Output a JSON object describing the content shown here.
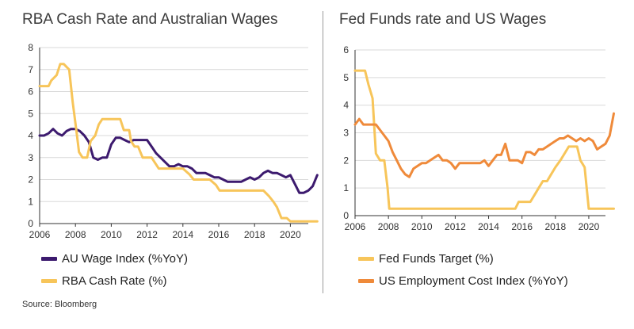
{
  "source": "Source: Bloomberg",
  "chart_data": [
    {
      "type": "line",
      "title": "RBA Cash Rate and Australian Wages",
      "xlim": [
        2006,
        2021
      ],
      "ylim": [
        0,
        8
      ],
      "xticks": [
        "2006",
        "2008",
        "2010",
        "2012",
        "2014",
        "2016",
        "2018",
        "2020"
      ],
      "yticks": [
        "0",
        "1",
        "2",
        "3",
        "4",
        "5",
        "6",
        "7",
        "8"
      ],
      "grid": "horizontal",
      "legend": "bottom",
      "series": [
        {
          "name": "AU Wage Index (%YoY)",
          "color": "#3c1a6e",
          "points": [
            [
              2006.0,
              4.0
            ],
            [
              2006.25,
              4.0
            ],
            [
              2006.5,
              4.1
            ],
            [
              2006.75,
              4.3
            ],
            [
              2007.0,
              4.1
            ],
            [
              2007.25,
              4.0
            ],
            [
              2007.5,
              4.2
            ],
            [
              2007.75,
              4.3
            ],
            [
              2008.0,
              4.3
            ],
            [
              2008.25,
              4.2
            ],
            [
              2008.5,
              4.0
            ],
            [
              2008.75,
              3.7
            ],
            [
              2009.0,
              3.0
            ],
            [
              2009.25,
              2.9
            ],
            [
              2009.5,
              3.0
            ],
            [
              2009.75,
              3.0
            ],
            [
              2010.0,
              3.6
            ],
            [
              2010.25,
              3.9
            ],
            [
              2010.5,
              3.9
            ],
            [
              2010.75,
              3.8
            ],
            [
              2011.0,
              3.7
            ],
            [
              2011.25,
              3.8
            ],
            [
              2011.5,
              3.8
            ],
            [
              2011.75,
              3.8
            ],
            [
              2012.0,
              3.8
            ],
            [
              2012.25,
              3.5
            ],
            [
              2012.5,
              3.2
            ],
            [
              2012.75,
              3.0
            ],
            [
              2013.0,
              2.8
            ],
            [
              2013.25,
              2.6
            ],
            [
              2013.5,
              2.6
            ],
            [
              2013.75,
              2.7
            ],
            [
              2014.0,
              2.6
            ],
            [
              2014.25,
              2.6
            ],
            [
              2014.5,
              2.5
            ],
            [
              2014.75,
              2.3
            ],
            [
              2015.0,
              2.3
            ],
            [
              2015.25,
              2.3
            ],
            [
              2015.5,
              2.2
            ],
            [
              2015.75,
              2.1
            ],
            [
              2016.0,
              2.1
            ],
            [
              2016.25,
              2.0
            ],
            [
              2016.5,
              1.9
            ],
            [
              2016.75,
              1.9
            ],
            [
              2017.0,
              1.9
            ],
            [
              2017.25,
              1.9
            ],
            [
              2017.5,
              2.0
            ],
            [
              2017.75,
              2.1
            ],
            [
              2018.0,
              2.0
            ],
            [
              2018.25,
              2.1
            ],
            [
              2018.5,
              2.3
            ],
            [
              2018.75,
              2.4
            ],
            [
              2019.0,
              2.3
            ],
            [
              2019.25,
              2.3
            ],
            [
              2019.5,
              2.2
            ],
            [
              2019.75,
              2.1
            ],
            [
              2020.0,
              2.2
            ],
            [
              2020.25,
              1.8
            ],
            [
              2020.5,
              1.4
            ],
            [
              2020.75,
              1.4
            ],
            [
              2021.0,
              1.5
            ],
            [
              2021.25,
              1.7
            ],
            [
              2021.5,
              2.2
            ]
          ]
        },
        {
          "name": "RBA Cash Rate (%)",
          "color": "#f7c55a",
          "points": [
            [
              2006.0,
              6.25
            ],
            [
              2006.35,
              6.25
            ],
            [
              2006.5,
              6.25
            ],
            [
              2006.65,
              6.5
            ],
            [
              2006.95,
              6.75
            ],
            [
              2007.15,
              7.25
            ],
            [
              2007.35,
              7.25
            ],
            [
              2007.65,
              7.0
            ],
            [
              2007.85,
              5.5
            ],
            [
              2008.05,
              4.25
            ],
            [
              2008.2,
              3.25
            ],
            [
              2008.4,
              3.0
            ],
            [
              2008.65,
              3.0
            ],
            [
              2008.85,
              3.75
            ],
            [
              2009.1,
              4.0
            ],
            [
              2009.3,
              4.5
            ],
            [
              2009.5,
              4.75
            ],
            [
              2010.5,
              4.75
            ],
            [
              2010.7,
              4.25
            ],
            [
              2011.0,
              4.25
            ],
            [
              2011.1,
              3.75
            ],
            [
              2011.3,
              3.5
            ],
            [
              2011.5,
              3.5
            ],
            [
              2011.75,
              3.0
            ],
            [
              2012.25,
              3.0
            ],
            [
              2012.45,
              2.75
            ],
            [
              2012.65,
              2.5
            ],
            [
              2014.0,
              2.5
            ],
            [
              2014.35,
              2.25
            ],
            [
              2014.6,
              2.0
            ],
            [
              2015.5,
              2.0
            ],
            [
              2015.85,
              1.75
            ],
            [
              2016.05,
              1.5
            ],
            [
              2018.5,
              1.5
            ],
            [
              2018.8,
              1.25
            ],
            [
              2019.05,
              1.0
            ],
            [
              2019.25,
              0.75
            ],
            [
              2019.5,
              0.25
            ],
            [
              2019.8,
              0.25
            ],
            [
              2020.0,
              0.1
            ],
            [
              2021.5,
              0.1
            ]
          ]
        }
      ]
    },
    {
      "type": "line",
      "title": "Fed Funds rate and US Wages",
      "xlim": [
        2006,
        2021
      ],
      "ylim": [
        0,
        6
      ],
      "xticks": [
        "2006",
        "2008",
        "2010",
        "2012",
        "2014",
        "2016",
        "2018",
        "2020"
      ],
      "yticks": [
        "0",
        "1",
        "2",
        "3",
        "4",
        "5",
        "6"
      ],
      "grid": "horizontal",
      "legend": "bottom",
      "series": [
        {
          "name": "Fed Funds Target (%)",
          "color": "#f7c55a",
          "points": [
            [
              2006.0,
              5.25
            ],
            [
              2006.6,
              5.25
            ],
            [
              2006.8,
              4.75
            ],
            [
              2007.05,
              4.25
            ],
            [
              2007.25,
              2.25
            ],
            [
              2007.5,
              2.0
            ],
            [
              2007.75,
              2.0
            ],
            [
              2007.95,
              1.0
            ],
            [
              2008.05,
              0.25
            ],
            [
              2015.6,
              0.25
            ],
            [
              2015.8,
              0.5
            ],
            [
              2016.5,
              0.5
            ],
            [
              2016.75,
              0.75
            ],
            [
              2017.0,
              1.0
            ],
            [
              2017.25,
              1.25
            ],
            [
              2017.5,
              1.25
            ],
            [
              2017.75,
              1.5
            ],
            [
              2018.0,
              1.75
            ],
            [
              2018.3,
              2.0
            ],
            [
              2018.55,
              2.25
            ],
            [
              2018.8,
              2.5
            ],
            [
              2019.3,
              2.5
            ],
            [
              2019.5,
              2.0
            ],
            [
              2019.75,
              1.75
            ],
            [
              2020.0,
              0.25
            ],
            [
              2021.5,
              0.25
            ]
          ]
        },
        {
          "name": "US Employment Cost Index (%YoY)",
          "color": "#ef8a3a",
          "points": [
            [
              2006.0,
              3.3
            ],
            [
              2006.25,
              3.5
            ],
            [
              2006.5,
              3.3
            ],
            [
              2006.75,
              3.3
            ],
            [
              2007.0,
              3.3
            ],
            [
              2007.25,
              3.3
            ],
            [
              2007.5,
              3.1
            ],
            [
              2007.75,
              2.9
            ],
            [
              2008.0,
              2.7
            ],
            [
              2008.25,
              2.3
            ],
            [
              2008.5,
              2.0
            ],
            [
              2008.75,
              1.7
            ],
            [
              2009.0,
              1.5
            ],
            [
              2009.25,
              1.4
            ],
            [
              2009.5,
              1.7
            ],
            [
              2009.75,
              1.8
            ],
            [
              2010.0,
              1.9
            ],
            [
              2010.25,
              1.9
            ],
            [
              2010.5,
              2.0
            ],
            [
              2010.75,
              2.1
            ],
            [
              2011.0,
              2.2
            ],
            [
              2011.25,
              2.0
            ],
            [
              2011.5,
              2.0
            ],
            [
              2011.75,
              1.9
            ],
            [
              2012.0,
              1.7
            ],
            [
              2012.25,
              1.9
            ],
            [
              2012.5,
              1.9
            ],
            [
              2012.75,
              1.9
            ],
            [
              2013.0,
              1.9
            ],
            [
              2013.25,
              1.9
            ],
            [
              2013.5,
              1.9
            ],
            [
              2013.75,
              2.0
            ],
            [
              2014.0,
              1.8
            ],
            [
              2014.25,
              2.0
            ],
            [
              2014.5,
              2.2
            ],
            [
              2014.75,
              2.2
            ],
            [
              2015.0,
              2.6
            ],
            [
              2015.25,
              2.0
            ],
            [
              2015.5,
              2.0
            ],
            [
              2015.75,
              2.0
            ],
            [
              2016.0,
              1.9
            ],
            [
              2016.25,
              2.3
            ],
            [
              2016.5,
              2.3
            ],
            [
              2016.75,
              2.2
            ],
            [
              2017.0,
              2.4
            ],
            [
              2017.25,
              2.4
            ],
            [
              2017.5,
              2.5
            ],
            [
              2017.75,
              2.6
            ],
            [
              2018.0,
              2.7
            ],
            [
              2018.25,
              2.8
            ],
            [
              2018.5,
              2.8
            ],
            [
              2018.75,
              2.9
            ],
            [
              2019.0,
              2.8
            ],
            [
              2019.25,
              2.7
            ],
            [
              2019.5,
              2.8
            ],
            [
              2019.75,
              2.7
            ],
            [
              2020.0,
              2.8
            ],
            [
              2020.25,
              2.7
            ],
            [
              2020.5,
              2.4
            ],
            [
              2020.75,
              2.5
            ],
            [
              2021.0,
              2.6
            ],
            [
              2021.25,
              2.9
            ],
            [
              2021.5,
              3.7
            ]
          ]
        }
      ]
    }
  ]
}
